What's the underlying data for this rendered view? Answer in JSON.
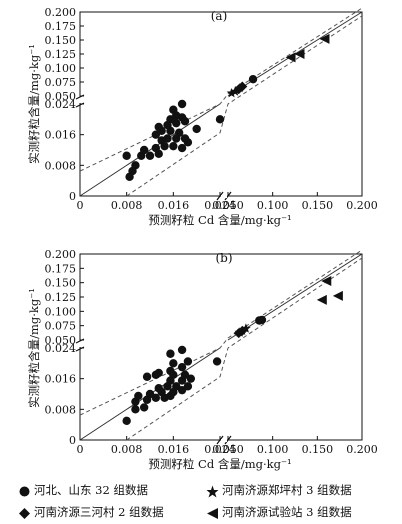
{
  "chart_data": [
    {
      "type": "scatter",
      "panel_label": "(a)",
      "xlabel": "预测籽粒 Cd 含量/mg·kg⁻¹",
      "ylabel": "实测籽粒含量/mg·kg⁻¹",
      "axis_break": "0.024–0.050 on both axes",
      "x_ticks": [
        "0",
        "0.008",
        "0.016",
        "0.024",
        "0.050",
        "0.100",
        "0.150",
        "0.200"
      ],
      "y_ticks": [
        "0",
        "0.008",
        "0.016",
        "0.024",
        "0.050",
        "0.075",
        "0.100",
        "0.125",
        "0.150",
        "0.175",
        "0.200"
      ],
      "series": [
        {
          "name": "河北、山东 32 组数据",
          "marker": "circle",
          "points": [
            [
              0.0085,
              0.005
            ],
            [
              0.009,
              0.0065
            ],
            [
              0.0095,
              0.008
            ],
            [
              0.008,
              0.0105
            ],
            [
              0.0105,
              0.0105
            ],
            [
              0.012,
              0.0105
            ],
            [
              0.0135,
              0.011
            ],
            [
              0.011,
              0.012
            ],
            [
              0.013,
              0.0125
            ],
            [
              0.0145,
              0.013
            ],
            [
              0.016,
              0.013
            ],
            [
              0.0175,
              0.0125
            ],
            [
              0.0185,
              0.014
            ],
            [
              0.014,
              0.0145
            ],
            [
              0.015,
              0.015
            ],
            [
              0.0165,
              0.015
            ],
            [
              0.018,
              0.015
            ],
            [
              0.013,
              0.016
            ],
            [
              0.014,
              0.017
            ],
            [
              0.0155,
              0.017
            ],
            [
              0.017,
              0.0165
            ],
            [
              0.02,
              0.0175
            ],
            [
              0.0135,
              0.018
            ],
            [
              0.015,
              0.0185
            ],
            [
              0.0165,
              0.019
            ],
            [
              0.018,
              0.0195
            ],
            [
              0.0155,
              0.02
            ],
            [
              0.0165,
              0.021
            ],
            [
              0.0175,
              0.0205
            ],
            [
              0.016,
              0.0225
            ],
            [
              0.0175,
              0.024
            ],
            [
              0.0255,
              0.02
            ]
          ]
        },
        {
          "name": "河南济源三河村 2 组数据",
          "marker": "diamond",
          "points": [
            [
              0.062,
              0.062
            ],
            [
              0.066,
              0.067
            ]
          ]
        },
        {
          "name": "河南济源郑坪村 3 组数据",
          "marker": "star",
          "points": [
            [
              0.054,
              0.055
            ],
            [
              0.058,
              0.058
            ],
            [
              0.063,
              0.064
            ]
          ]
        },
        {
          "name": "河南济源试验站 3 组数据",
          "marker": "triangle-left",
          "points": [
            [
              0.12,
              0.119
            ],
            [
              0.13,
              0.125
            ],
            [
              0.158,
              0.152
            ]
          ]
        },
        {
          "name": "",
          "marker": "circle",
          "points": [
            [
              0.078,
              0.08
            ]
          ]
        }
      ]
    },
    {
      "type": "scatter",
      "panel_label": "(b)",
      "xlabel": "预测籽粒 Cd 含量/mg·kg⁻¹",
      "ylabel": "实测籽粒含量/mg·kg⁻¹",
      "axis_break": "0.024–0.050 on both axes",
      "x_ticks": [
        "0",
        "0.008",
        "0.016",
        "0.024",
        "0.050",
        "0.100",
        "0.150",
        "0.200"
      ],
      "y_ticks": [
        "0",
        "0.008",
        "0.016",
        "0.024",
        "0.050",
        "0.075",
        "0.100",
        "0.125",
        "0.150",
        "0.175",
        "0.200"
      ],
      "series": [
        {
          "name": "河北、山东 32 组数据",
          "marker": "circle",
          "points": [
            [
              0.008,
              0.005
            ],
            [
              0.0095,
              0.008
            ],
            [
              0.011,
              0.0085
            ],
            [
              0.0095,
              0.01
            ],
            [
              0.0115,
              0.0105
            ],
            [
              0.01,
              0.0115
            ],
            [
              0.013,
              0.011
            ],
            [
              0.0145,
              0.011
            ],
            [
              0.0155,
              0.0115
            ],
            [
              0.012,
              0.012
            ],
            [
              0.014,
              0.0125
            ],
            [
              0.016,
              0.0125
            ],
            [
              0.0175,
              0.013
            ],
            [
              0.0135,
              0.0135
            ],
            [
              0.015,
              0.014
            ],
            [
              0.0165,
              0.014
            ],
            [
              0.0185,
              0.014
            ],
            [
              0.0155,
              0.0155
            ],
            [
              0.0175,
              0.0155
            ],
            [
              0.019,
              0.016
            ],
            [
              0.0115,
              0.0165
            ],
            [
              0.013,
              0.017
            ],
            [
              0.016,
              0.017
            ],
            [
              0.018,
              0.017
            ],
            [
              0.0135,
              0.0175
            ],
            [
              0.0155,
              0.018
            ],
            [
              0.0175,
              0.019
            ],
            [
              0.016,
              0.02
            ],
            [
              0.0185,
              0.0205
            ],
            [
              0.0235,
              0.0205
            ],
            [
              0.0155,
              0.0225
            ],
            [
              0.0175,
              0.0235
            ]
          ]
        },
        {
          "name": "河南济源三河村 2 组数据",
          "marker": "diamond",
          "points": [
            [
              0.062,
              0.062
            ],
            [
              0.066,
              0.066
            ]
          ]
        },
        {
          "name": "河南济源郑坪村 3 组数据",
          "marker": "star",
          "points": [
            [
              0.063,
              0.063
            ],
            [
              0.066,
              0.066
            ],
            [
              0.07,
              0.07
            ]
          ]
        },
        {
          "name": "河南济源试验站 3 组数据",
          "marker": "triangle-left",
          "points": [
            [
              0.16,
              0.153
            ],
            [
              0.155,
              0.12
            ],
            [
              0.173,
              0.127
            ]
          ]
        },
        {
          "name": "",
          "marker": "circle",
          "points": [
            [
              0.085,
              0.084
            ],
            [
              0.088,
              0.085
            ]
          ]
        }
      ]
    }
  ],
  "legend": [
    {
      "label": "河北、山东 32 组数据",
      "marker": "circle"
    },
    {
      "label": "河南济源郑坪村 3 组数据",
      "marker": "star"
    },
    {
      "label": "河南济源三河村 2 组数据",
      "marker": "diamond"
    },
    {
      "label": "河南济源试验站 3 组数据",
      "marker": "triangle-left"
    }
  ]
}
